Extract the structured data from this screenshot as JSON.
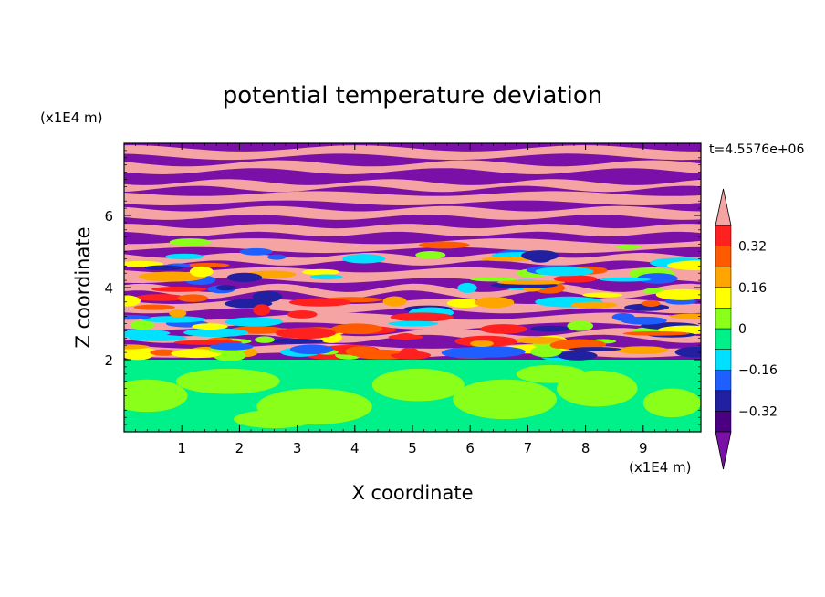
{
  "chart_data": {
    "type": "heatmap",
    "title": "potential temperature deviation",
    "xlabel": "X coordinate",
    "ylabel": "Z coordinate",
    "x_unit": "(x1E4 m)",
    "y_unit": "(x1E4 m)",
    "time_label": "t=4.5576e+06",
    "x_ticks": [
      "1",
      "2",
      "3",
      "4",
      "5",
      "6",
      "7",
      "8",
      "9"
    ],
    "y_ticks": [
      "2",
      "4",
      "6"
    ],
    "xlim": [
      0,
      10
    ],
    "ylim": [
      0,
      8
    ],
    "colorbar": {
      "tick_labels": [
        "0.32",
        "0.16",
        "0",
        "−0.16",
        "−0.32"
      ],
      "tick_values": [
        0.32,
        0.16,
        0,
        -0.16,
        -0.32
      ],
      "levels": [
        -0.4,
        -0.32,
        -0.24,
        -0.16,
        -0.08,
        0,
        0.08,
        0.16,
        0.24,
        0.32,
        0.4
      ],
      "colors": [
        "#4b0082",
        "#2020a0",
        "#1f5fff",
        "#00e0ff",
        "#00f08a",
        "#8aff1a",
        "#ffff00",
        "#ffa500",
        "#ff5a00",
        "#ff2020"
      ],
      "under_color": "#7a10a8",
      "over_color": "#f5a3a3"
    },
    "regions": {
      "lower_layer_z": [
        0,
        2
      ],
      "lower_layer_colors": [
        "#00f08a",
        "#8aff1a"
      ],
      "upper_layer_z": [
        2,
        8
      ],
      "upper_layer_colors": [
        "#7a10a8",
        "#f5a3a3"
      ]
    }
  }
}
